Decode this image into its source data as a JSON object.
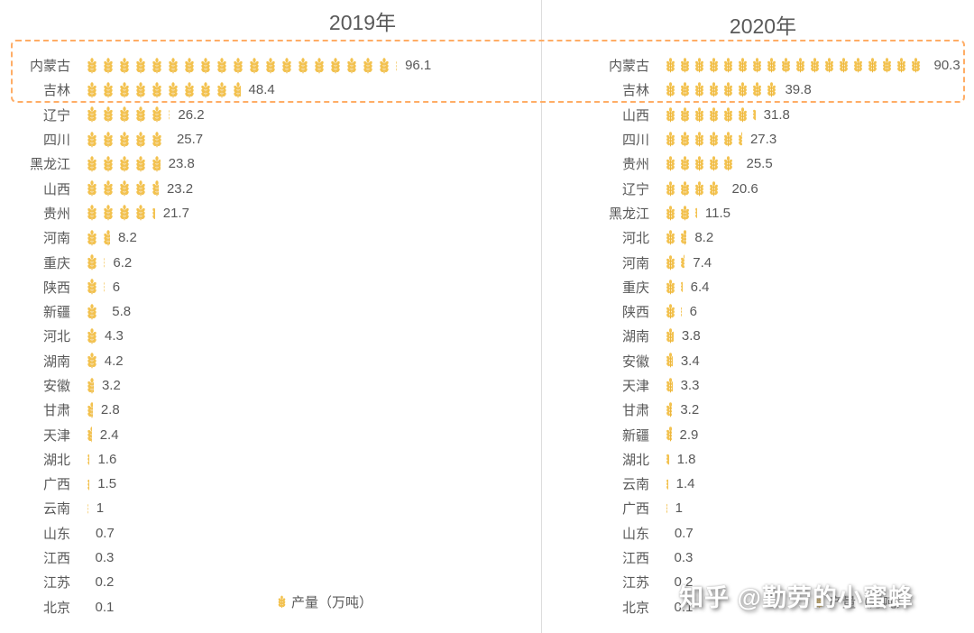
{
  "watermark": "知乎 @勤劳的小蜜蜂",
  "legend_label": "产量（万吨）",
  "unit_per_icon": 5,
  "colors": {
    "icon": "#F3C24F",
    "icon_stem": "#ECB63E",
    "text": "#595959",
    "highlight_border": "#FFAD66",
    "divider": "#DDDDDD",
    "watermark_text": "#FFFFFF"
  },
  "chart_data": [
    {
      "type": "bar",
      "subtype": "pictogram",
      "icon": "wheat",
      "unit_per_icon": 5,
      "title": "2019年",
      "legend": "产量（万吨）",
      "highlighted_categories": [
        "内蒙古",
        "吉林"
      ],
      "categories": [
        "内蒙古",
        "吉林",
        "辽宁",
        "四川",
        "黑龙江",
        "山西",
        "贵州",
        "河南",
        "重庆",
        "陕西",
        "新疆",
        "河北",
        "湖南",
        "安徽",
        "甘肃",
        "天津",
        "湖北",
        "广西",
        "云南",
        "山东",
        "江西",
        "江苏",
        "北京"
      ],
      "values": [
        96.1,
        48.4,
        26.2,
        25.7,
        23.8,
        23.2,
        21.7,
        8.2,
        6.2,
        6,
        5.8,
        4.3,
        4.2,
        3.2,
        2.8,
        2.4,
        1.6,
        1.5,
        1,
        0.7,
        0.3,
        0.2,
        0.1
      ]
    },
    {
      "type": "bar",
      "subtype": "pictogram",
      "icon": "wheat",
      "unit_per_icon": 5,
      "title": "2020年",
      "legend": "产量（万吨）",
      "highlighted_categories": [
        "内蒙古",
        "吉林"
      ],
      "categories": [
        "内蒙古",
        "吉林",
        "山西",
        "四川",
        "贵州",
        "辽宁",
        "黑龙江",
        "河北",
        "河南",
        "重庆",
        "陕西",
        "湖南",
        "安徽",
        "天津",
        "甘肃",
        "新疆",
        "湖北",
        "云南",
        "广西",
        "山东",
        "江西",
        "江苏",
        "北京"
      ],
      "values": [
        90.3,
        39.8,
        31.8,
        27.3,
        25.5,
        20.6,
        11.5,
        8.2,
        7.4,
        6.4,
        6,
        3.8,
        3.4,
        3.3,
        3.2,
        2.9,
        1.8,
        1.4,
        1,
        0.7,
        0.3,
        0.2,
        0.1
      ]
    }
  ]
}
